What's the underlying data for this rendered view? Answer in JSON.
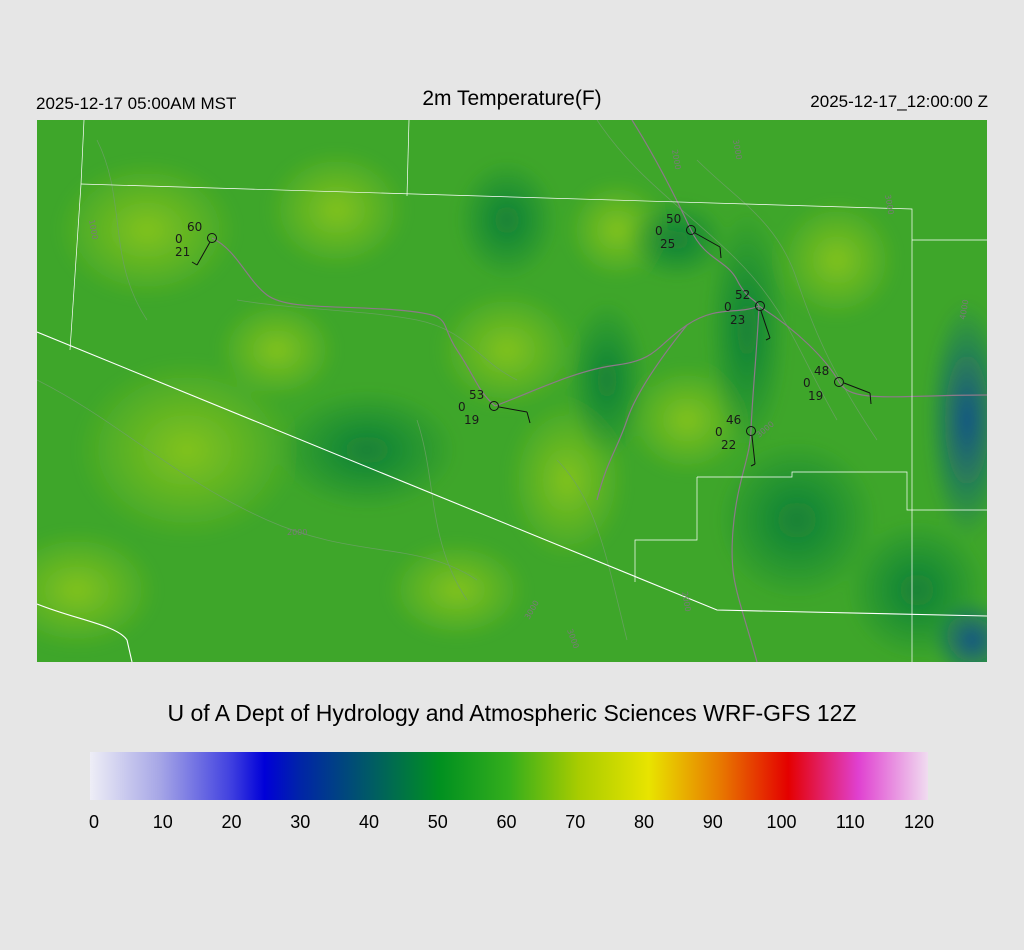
{
  "header": {
    "local_time": "2025-12-17 05:00AM MST",
    "title": "2m Temperature(F)",
    "utc_time": "2025-12-17_12:00:00 Z"
  },
  "credit": "U of A Dept of Hydrology and Atmospheric Sciences WRF-GFS 12Z",
  "colorbar": {
    "ticks": [
      "0",
      "10",
      "20",
      "30",
      "40",
      "50",
      "60",
      "70",
      "80",
      "90",
      "100",
      "110",
      "120"
    ],
    "stops": [
      {
        "v": 0,
        "c": "#eeeef6"
      },
      {
        "v": 10,
        "c": "#a6a6e6"
      },
      {
        "v": 20,
        "c": "#4242e0"
      },
      {
        "v": 25,
        "c": "#0000d8"
      },
      {
        "v": 30,
        "c": "#0024a8"
      },
      {
        "v": 40,
        "c": "#005a66"
      },
      {
        "v": 50,
        "c": "#009020"
      },
      {
        "v": 60,
        "c": "#34ae1c"
      },
      {
        "v": 70,
        "c": "#a8cc00"
      },
      {
        "v": 80,
        "c": "#e8e400"
      },
      {
        "v": 90,
        "c": "#e87c00"
      },
      {
        "v": 100,
        "c": "#e40000"
      },
      {
        "v": 110,
        "c": "#e040d0"
      },
      {
        "v": 120,
        "c": "#f0dcf0"
      }
    ]
  },
  "map": {
    "contour_labels": [
      "2000",
      "3000",
      "1000",
      "3000",
      "4000",
      "3000",
      "2000",
      "3000",
      "3000",
      "2000"
    ]
  },
  "stations": [
    {
      "temp": "60",
      "wind": "0",
      "dew": "21"
    },
    {
      "temp": "50",
      "wind": "0",
      "dew": "25"
    },
    {
      "temp": "52",
      "wind": "0",
      "dew": "23"
    },
    {
      "temp": "53",
      "wind": "0",
      "dew": "19"
    },
    {
      "temp": "48",
      "wind": "0",
      "dew": "19"
    },
    {
      "temp": "46",
      "wind": "0",
      "dew": "22"
    }
  ]
}
